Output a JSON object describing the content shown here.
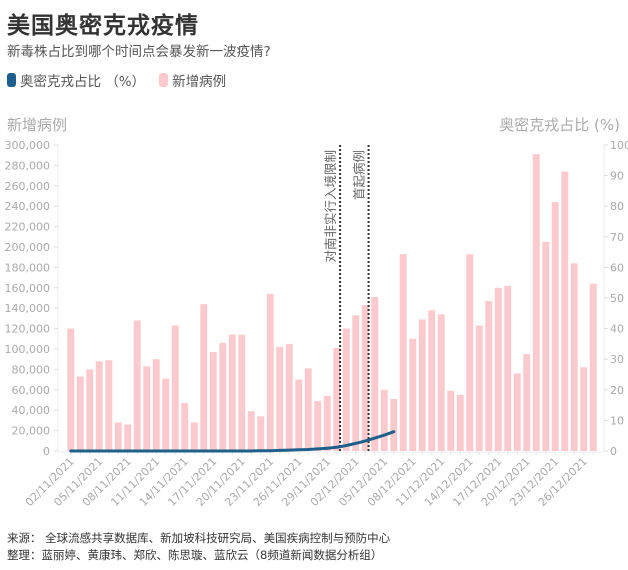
{
  "header": {
    "title": "美国奥密克戎疫情",
    "subtitle": "新毒株占比到哪个时间点会暴发新一波疫情?"
  },
  "legend": {
    "items": [
      {
        "label": "奥密克戎占比 （%）",
        "color": "#1f5f8b"
      },
      {
        "label": "新增病例",
        "color": "#fcc9cc"
      }
    ]
  },
  "axes": {
    "left_title": "新增病例",
    "right_title": "奥密克戎占比 (%)"
  },
  "annotations": [
    {
      "label": "对南非实行入境限制",
      "index": 28
    },
    {
      "label": "首起病例",
      "index": 31
    }
  ],
  "footer": {
    "source": "来源：  全球流感共享数据库、新加坡科技研究局、美国疾病控制与预防中心",
    "compiled": "整理：蓝丽婷、黄康玮、郑欣、陈思璇、蓝欣云（8频道新闻数据分析组）"
  },
  "chart_data": {
    "type": "bar",
    "title": "美国奥密克戎疫情",
    "subtitle": "新毒株占比到哪个时间点会暴发新一波疫情?",
    "xlabel": "",
    "ylabel": "新增病例",
    "y2label": "奥密克戎占比 (%)",
    "ylim": [
      0,
      300000
    ],
    "y2lim": [
      0,
      100
    ],
    "yticks": [
      0,
      20000,
      40000,
      60000,
      80000,
      100000,
      120000,
      140000,
      160000,
      180000,
      200000,
      220000,
      240000,
      260000,
      280000,
      300000
    ],
    "ytick_labels": [
      "0",
      "20,000",
      "40,000",
      "60,000",
      "80,000",
      "100,000",
      "120,000",
      "140,000",
      "160,000",
      "180,000",
      "200,000",
      "220,000",
      "240,000",
      "260,000",
      "280,000",
      "300,000"
    ],
    "y2ticks": [
      0,
      10,
      20,
      30,
      40,
      50,
      60,
      70,
      80,
      90,
      100
    ],
    "xtick_labels": [
      "02/11/2021",
      "05/11/2021",
      "08/11/2021",
      "11/11/2021",
      "14/11/2021",
      "17/11/2021",
      "20/11/2021",
      "23/11/2021",
      "26/11/2021",
      "29/11/2021",
      "02/12/2021",
      "05/12/2021",
      "08/12/2021",
      "11/12/2021",
      "14/12/2021",
      "17/12/2021",
      "20/12/2021",
      "23/12/2021",
      "26/12/2021"
    ],
    "grid": false,
    "legend_position": "top-left",
    "series": [
      {
        "name": "新增病例",
        "type": "bar",
        "axis": "left",
        "color": "#fcc9cc",
        "values": [
          120000,
          73000,
          80000,
          88000,
          89000,
          28000,
          26000,
          128000,
          83000,
          90000,
          71000,
          123000,
          47000,
          28000,
          144000,
          97000,
          106000,
          114000,
          114000,
          39000,
          34000,
          154000,
          102000,
          105000,
          70000,
          81000,
          49000,
          54000,
          101000,
          120000,
          133000,
          143000,
          151000,
          60000,
          51000,
          193000,
          110000,
          129000,
          138000,
          134000,
          59000,
          55000,
          193000,
          123000,
          147000,
          160000,
          162000,
          76000,
          95000,
          291000,
          205000,
          244000,
          274000,
          184000,
          82000,
          164000
        ]
      },
      {
        "name": "奥密克戎占比 （%）",
        "type": "line",
        "axis": "right",
        "color": "#1f5f8b",
        "values": [
          0.0,
          0.0,
          0.0,
          0.0,
          0.0,
          0.0,
          0.0,
          0.0,
          0.0,
          0.0,
          0.0,
          0.0,
          0.0,
          0.0,
          0.0,
          0.0,
          0.0,
          0.0,
          0.0,
          0.0,
          0.1,
          0.1,
          0.2,
          0.3,
          0.4,
          0.5,
          0.7,
          0.9,
          1.2,
          1.8,
          2.5,
          3.3,
          4.2,
          5.2,
          6.3
        ]
      }
    ]
  }
}
